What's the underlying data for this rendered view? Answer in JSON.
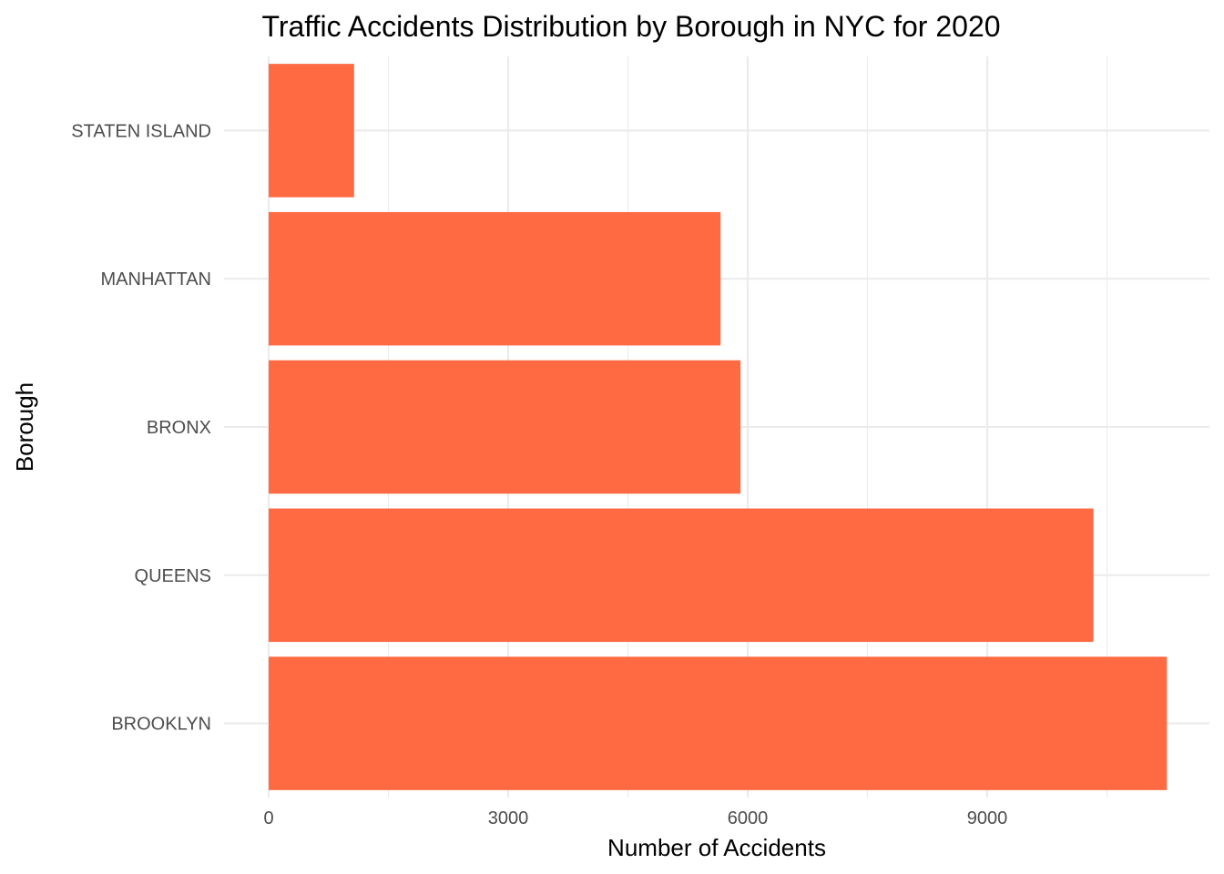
{
  "chart_data": {
    "type": "bar",
    "orientation": "horizontal",
    "title": "Traffic Accidents Distribution by Borough in NYC for 2020",
    "xlabel": "Number of Accidents",
    "ylabel": "Borough",
    "categories": [
      "BROOKLYN",
      "QUEENS",
      "BRONX",
      "MANHATTAN",
      "STATEN ISLAND"
    ],
    "values": [
      11250,
      10330,
      5910,
      5660,
      1070
    ],
    "x_ticks": [
      0,
      3000,
      6000,
      9000
    ],
    "x_tick_labels": [
      "0",
      "3000",
      "6000",
      "9000"
    ],
    "x_minor_ticks": [
      1500,
      4500,
      7500,
      10500
    ],
    "xlim": [
      0,
      11800
    ],
    "grid": true,
    "legend": "none",
    "bar_color": "#FF6A43"
  }
}
